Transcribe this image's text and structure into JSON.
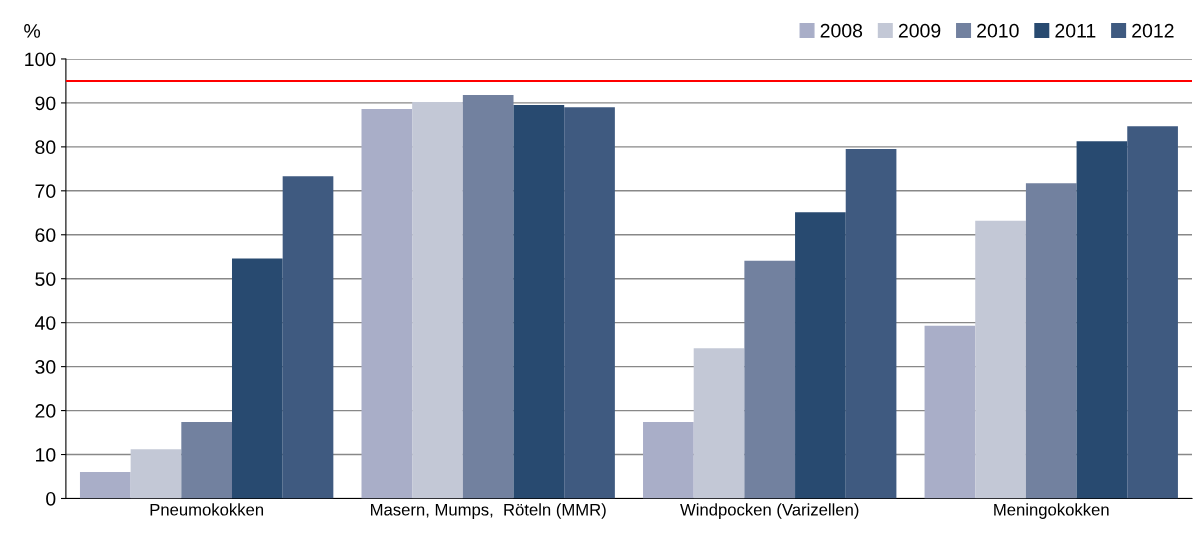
{
  "chart_data": {
    "type": "bar",
    "ylabel": "%",
    "categories": [
      "Pneumokokken",
      "Masern, Mumps,  Röteln (MMR)",
      "Windpocken (Varizellen)",
      "Meningokokken"
    ],
    "series": [
      {
        "name": "2008",
        "color": "#a9aec8",
        "values": [
          6,
          88.6,
          17.4,
          39.3
        ]
      },
      {
        "name": "2009",
        "color": "#c3c8d6",
        "values": [
          11.2,
          90.2,
          34.2,
          63.2
        ]
      },
      {
        "name": "2010",
        "color": "#72819f",
        "values": [
          17.4,
          91.8,
          54.1,
          71.7
        ]
      },
      {
        "name": "2011",
        "color": "#284a70",
        "values": [
          54.6,
          89.5,
          65.1,
          81.3
        ]
      },
      {
        "name": "2012",
        "color": "#3f5a80",
        "values": [
          73.3,
          89.0,
          79.5,
          84.7
        ]
      }
    ],
    "ylim": [
      0,
      100
    ],
    "yticks": [
      0,
      10,
      20,
      30,
      40,
      50,
      60,
      70,
      80,
      90,
      100
    ],
    "ref_lines": [
      {
        "axis": "y",
        "value": 95,
        "color": "#ff0000"
      }
    ],
    "grid": "y",
    "legend": "top right"
  }
}
